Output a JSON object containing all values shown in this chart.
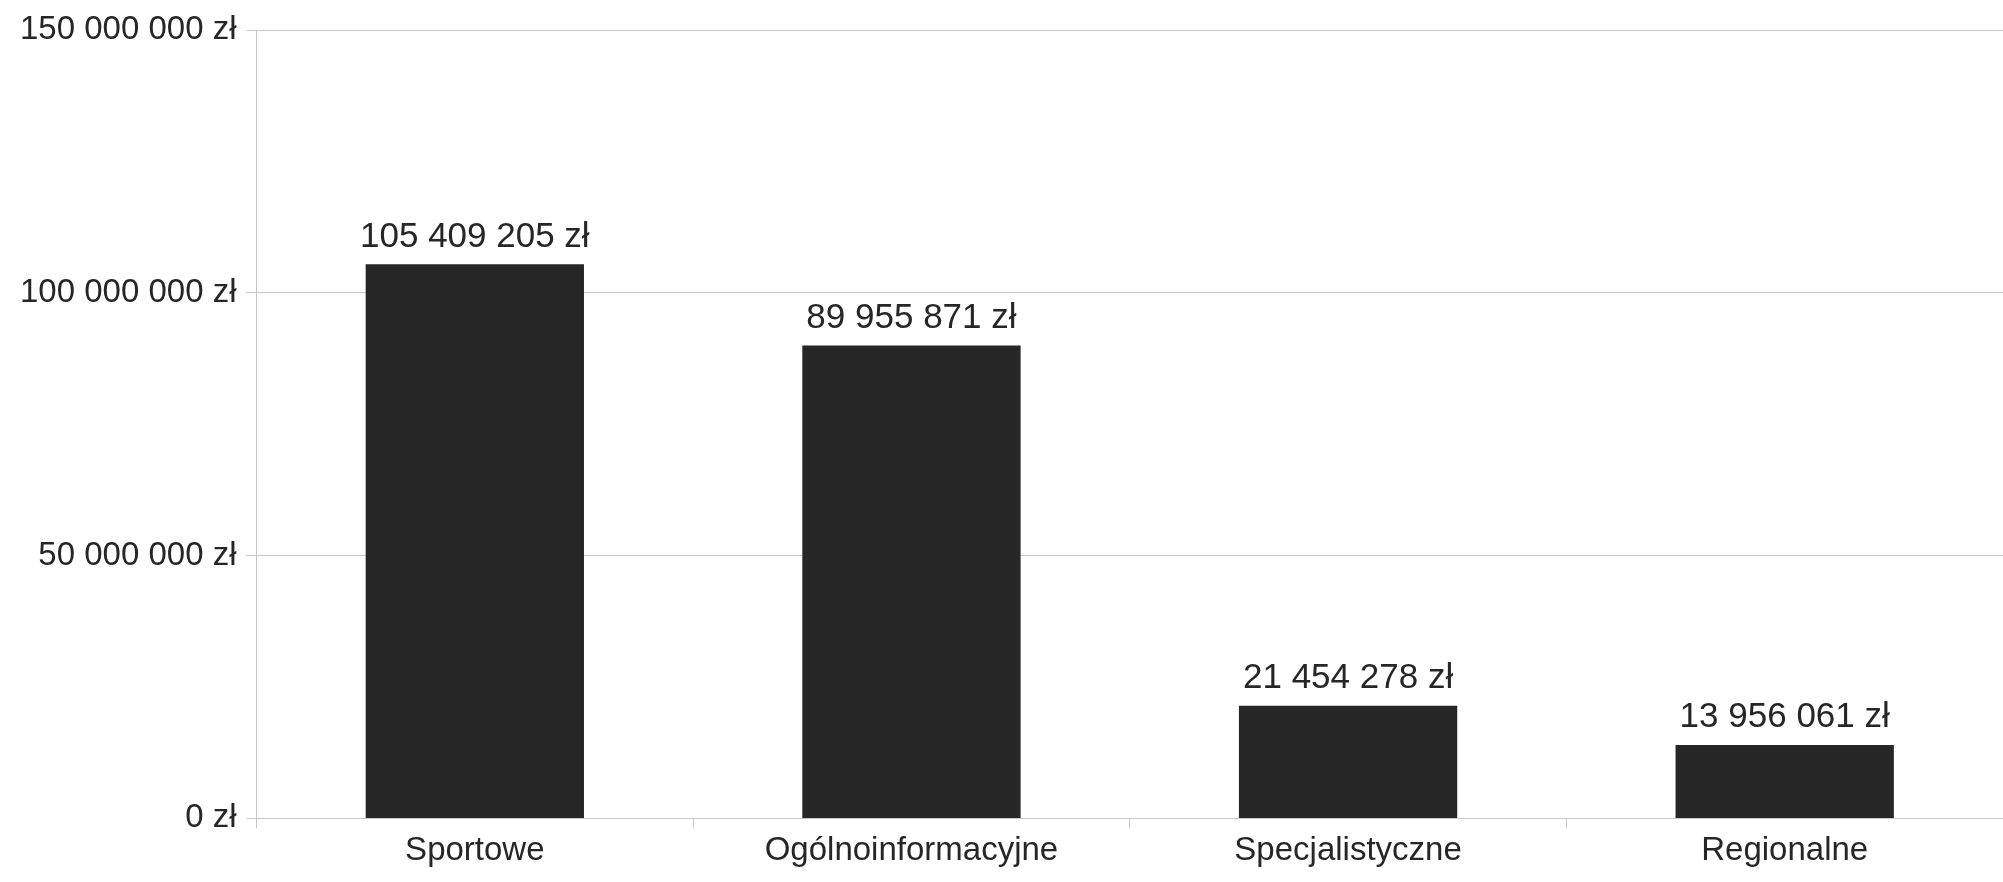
{
  "chart_data": {
    "type": "bar",
    "categories": [
      "Sportowe",
      "Ogólnoinformacyjne",
      "Specjalistyczne",
      "Regionalne"
    ],
    "values": [
      105409205,
      89955871,
      21454278,
      13956061
    ],
    "value_labels": [
      "105 409 205 zł",
      "89 955 871 zł",
      "21 454 278 zł",
      "13 956 061 zł"
    ],
    "color": "#262626",
    "ylim": [
      0,
      150000000
    ],
    "yticks": [
      {
        "value": 0,
        "label": "0 zł"
      },
      {
        "value": 50000000,
        "label": "50 000 000 zł"
      },
      {
        "value": 100000000,
        "label": "100 000 000 zł"
      },
      {
        "value": 150000000,
        "label": "150 000 000 zł"
      }
    ],
    "grid": "y",
    "legend": false
  }
}
